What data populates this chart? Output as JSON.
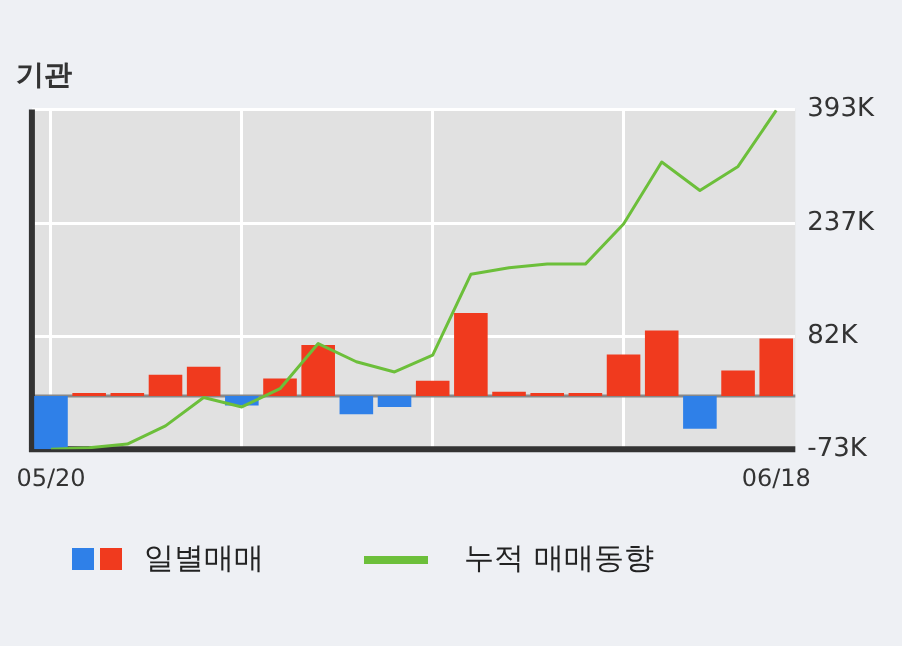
{
  "chart_data": {
    "type": "bar",
    "title": "기관",
    "categories": [
      "05/20",
      null,
      null,
      null,
      null,
      null,
      null,
      null,
      null,
      null,
      null,
      null,
      null,
      null,
      null,
      null,
      null,
      null,
      null,
      "06/18"
    ],
    "series": [
      {
        "name": "일별매매",
        "colors": [
          "#2f80e8",
          "#f03a1e",
          "#f03a1e",
          "#f03a1e",
          "#f03a1e",
          "#2f80e8",
          "#f03a1e",
          "#f03a1e",
          "#2f80e8",
          "#2f80e8",
          "#f03a1e",
          "#f03a1e",
          "#f03a1e",
          "#f03a1e",
          "#f03a1e",
          "#f03a1e",
          "#f03a1e",
          "#2f80e8",
          "#f03a1e",
          "#f03a1e"
        ],
        "values": [
          -73,
          4,
          4,
          29,
          40,
          -13,
          24,
          70,
          -25,
          -15,
          21,
          114,
          6,
          4,
          4,
          57,
          90,
          -45,
          35,
          79
        ]
      },
      {
        "name": "누적 매매동향",
        "type": "line",
        "color": "#6cbf3a",
        "values": [
          -73,
          -71,
          -66,
          -41,
          -2,
          -15,
          10,
          72,
          47,
          33,
          56,
          167,
          176,
          181,
          181,
          236,
          321,
          282,
          315,
          392
        ]
      }
    ],
    "ylim": [
      -73,
      393
    ],
    "yticks": [
      {
        "value": -73,
        "label": "-73K"
      },
      {
        "value": 82,
        "label": "82K"
      },
      {
        "value": 237,
        "label": "237K"
      },
      {
        "value": 393,
        "label": "393K"
      }
    ],
    "grid": true,
    "legend": "bottom",
    "marker": "none"
  }
}
